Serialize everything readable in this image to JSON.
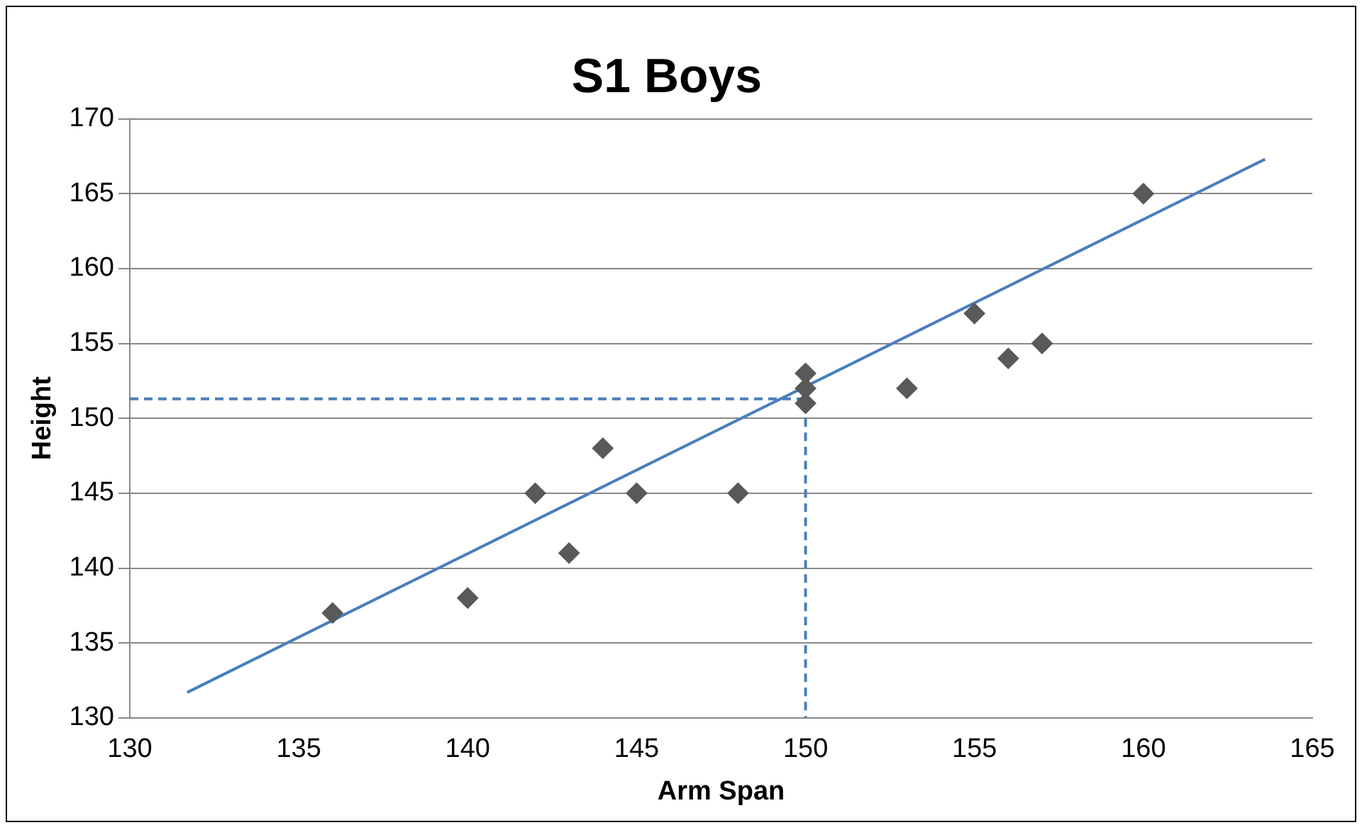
{
  "chart_data": {
    "type": "scatter",
    "title": "S1 Boys",
    "xlabel": "Arm Span",
    "ylabel": "Height",
    "xlim": [
      130,
      165
    ],
    "xticks": [
      130,
      135,
      140,
      145,
      150,
      155,
      160,
      165
    ],
    "ylim": [
      130,
      170
    ],
    "yticks": [
      130,
      135,
      140,
      145,
      150,
      155,
      160,
      165,
      170
    ],
    "grid": "y",
    "legend": false,
    "series": [
      {
        "type": "scatter",
        "color": "#595959",
        "marker": "diamond",
        "x": [
          136,
          140,
          142,
          143,
          144,
          145,
          148,
          150,
          150,
          150,
          153,
          155,
          156,
          157,
          160
        ],
        "values": [
          137,
          138,
          145,
          141,
          148,
          145,
          145,
          153,
          152,
          151,
          152,
          157,
          154,
          155,
          165
        ]
      },
      {
        "type": "line",
        "color": "#4a7ebb",
        "marker": "none",
        "line_style": "solid",
        "x": [
          131.7,
          163.6
        ],
        "values": [
          131.7,
          167.3
        ]
      },
      {
        "type": "line",
        "color": "#4a7ebb",
        "marker": "none",
        "line_style": "dashed",
        "x": [
          130,
          150,
          150
        ],
        "values": [
          151.3,
          151.3,
          130
        ]
      }
    ]
  }
}
